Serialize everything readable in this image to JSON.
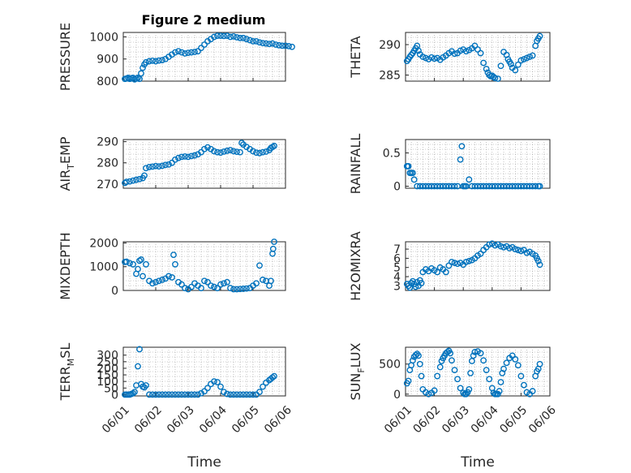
{
  "figure": {
    "title": "Figure 2 medium"
  },
  "colors": {
    "marker": "#0072BD",
    "axis": "#262626",
    "grid": "#9a9a9a"
  },
  "chart_data": [
    {
      "id": "pressure",
      "type": "scatter",
      "ylabel": "PRESSURE",
      "ylim": [
        800,
        1020
      ],
      "yticks": [
        800,
        900,
        1000
      ],
      "xlim": [
        0,
        5
      ],
      "xticks": [
        0,
        1,
        2,
        3,
        4,
        5
      ],
      "xticklabels": [],
      "x": [
        0.05,
        0.1,
        0.15,
        0.2,
        0.25,
        0.3,
        0.35,
        0.4,
        0.45,
        0.5,
        0.55,
        0.6,
        0.65,
        0.7,
        0.8,
        0.9,
        1.0,
        1.1,
        1.2,
        1.3,
        1.4,
        1.5,
        1.6,
        1.7,
        1.8,
        1.9,
        2.0,
        2.1,
        2.2,
        2.3,
        2.4,
        2.5,
        2.6,
        2.7,
        2.8,
        2.9,
        3.0,
        3.1,
        3.2,
        3.3,
        3.4,
        3.5,
        3.6,
        3.7,
        3.8,
        3.9,
        4.0,
        4.1,
        4.2,
        4.3,
        4.4,
        4.5,
        4.6,
        4.7,
        4.8,
        4.9,
        5.0,
        5.1,
        5.2
      ],
      "y": [
        810,
        812,
        815,
        810,
        813,
        815,
        808,
        812,
        815,
        810,
        835,
        860,
        875,
        885,
        890,
        892,
        890,
        893,
        895,
        900,
        910,
        920,
        930,
        935,
        930,
        925,
        928,
        930,
        932,
        935,
        950,
        965,
        980,
        990,
        1000,
        1005,
        1005,
        1004,
        1005,
        1000,
        1002,
        998,
        995,
        995,
        990,
        985,
        980,
        980,
        975,
        972,
        970,
        968,
        970,
        965,
        962,
        960,
        960,
        958,
        955
      ]
    },
    {
      "id": "theta",
      "type": "scatter",
      "ylabel": "THETA",
      "ylim": [
        284,
        292
      ],
      "yticks": [
        285,
        290
      ],
      "xlim": [
        0,
        5
      ],
      "xticks": [
        0,
        1,
        2,
        3,
        4,
        5
      ],
      "xticklabels": [],
      "x": [
        0.05,
        0.1,
        0.15,
        0.2,
        0.25,
        0.3,
        0.35,
        0.4,
        0.45,
        0.5,
        0.6,
        0.7,
        0.8,
        0.9,
        1.0,
        1.1,
        1.2,
        1.3,
        1.4,
        1.5,
        1.6,
        1.7,
        1.8,
        1.9,
        2.0,
        2.1,
        2.2,
        2.3,
        2.4,
        2.5,
        2.6,
        2.7,
        2.8,
        2.85,
        2.9,
        2.95,
        3.0,
        3.05,
        3.1,
        3.2,
        3.3,
        3.4,
        3.5,
        3.55,
        3.6,
        3.65,
        3.7,
        3.8,
        3.9,
        4.0,
        4.1,
        4.2,
        4.3,
        4.4,
        4.5,
        4.55,
        4.6,
        4.65
      ],
      "y": [
        287.3,
        287.6,
        288,
        288.3,
        288.6,
        289,
        289.4,
        289.8,
        289,
        288.4,
        288,
        287.8,
        287.6,
        287.9,
        287.7,
        287.8,
        287.5,
        287.9,
        288.2,
        288.6,
        288.9,
        288.5,
        288.6,
        289,
        289.2,
        288.9,
        289.1,
        289.4,
        289.8,
        289.2,
        288.6,
        287,
        286,
        285.4,
        285,
        284.8,
        284.9,
        284.7,
        284.5,
        284.4,
        286.5,
        288.8,
        288.3,
        287.6,
        287.2,
        286.8,
        286.2,
        285.8,
        286.7,
        287.4,
        287.6,
        287.8,
        288,
        288.2,
        289.8,
        290.6,
        291,
        291.4
      ]
    },
    {
      "id": "air_temp",
      "type": "scatter",
      "ylabel": "AIR_TEMP",
      "ylabel_main": "AIR",
      "ylabel_sub": "T",
      "ylabel_tail": "EMP",
      "ylim": [
        268,
        291
      ],
      "yticks": [
        270,
        280,
        290
      ],
      "xlim": [
        0,
        5
      ],
      "xticks": [
        0,
        1,
        2,
        3,
        4,
        5
      ],
      "xticklabels": [],
      "x": [
        0.05,
        0.1,
        0.2,
        0.3,
        0.4,
        0.5,
        0.6,
        0.65,
        0.7,
        0.8,
        0.9,
        1.0,
        1.1,
        1.2,
        1.3,
        1.4,
        1.5,
        1.6,
        1.7,
        1.8,
        1.9,
        2.0,
        2.1,
        2.2,
        2.3,
        2.4,
        2.5,
        2.6,
        2.7,
        2.8,
        2.9,
        3.0,
        3.1,
        3.2,
        3.3,
        3.4,
        3.5,
        3.6,
        3.65,
        3.7,
        3.8,
        3.9,
        4.0,
        4.1,
        4.2,
        4.3,
        4.4,
        4.5,
        4.55,
        4.6,
        4.65
      ],
      "y": [
        270.5,
        271,
        271.2,
        271.6,
        272,
        272.3,
        272.8,
        274,
        277.5,
        278,
        278.2,
        278.5,
        278.3,
        278.6,
        279,
        279.2,
        280,
        281.5,
        282.3,
        282.8,
        283,
        282.8,
        283.2,
        283.5,
        284,
        285,
        286.5,
        287.3,
        286.5,
        285.5,
        285,
        284.8,
        285.3,
        285.7,
        286,
        285.5,
        285.2,
        285,
        289.4,
        288.6,
        287.5,
        286.5,
        285.5,
        284.8,
        284.6,
        285,
        285.3,
        286,
        287,
        287.5,
        288
      ]
    },
    {
      "id": "rainfall",
      "type": "scatter",
      "ylabel": "RAINFALL",
      "ylim": [
        -0.03,
        0.7
      ],
      "yticks": [
        0,
        0.5
      ],
      "yticklabels": [
        "0",
        "0.5"
      ],
      "xlim": [
        0,
        5
      ],
      "xticks": [
        0,
        1,
        2,
        3,
        4,
        5
      ],
      "xticklabels": [],
      "x": [
        0.05,
        0.08,
        0.1,
        0.15,
        0.2,
        0.25,
        0.3,
        0.4,
        0.5,
        0.6,
        0.7,
        0.8,
        0.9,
        1.0,
        1.1,
        1.2,
        1.3,
        1.4,
        1.5,
        1.6,
        1.7,
        1.8,
        1.9,
        1.95,
        2.0,
        2.05,
        2.1,
        2.2,
        2.3,
        2.4,
        2.5,
        2.6,
        2.7,
        2.8,
        2.9,
        3.0,
        3.1,
        3.2,
        3.3,
        3.4,
        3.5,
        3.6,
        3.7,
        3.8,
        3.9,
        4.0,
        4.1,
        4.2,
        4.3,
        4.4,
        4.5,
        4.6,
        4.65
      ],
      "y": [
        0.3,
        0.3,
        0.3,
        0.2,
        0.2,
        0.2,
        0.1,
        0,
        0,
        0,
        0,
        0,
        0,
        0,
        0,
        0,
        0,
        0,
        0,
        0,
        0,
        0,
        0.4,
        0.6,
        0,
        0,
        0,
        0.1,
        0,
        0,
        0,
        0,
        0,
        0,
        0,
        0,
        0,
        0,
        0,
        0,
        0,
        0,
        0,
        0,
        0,
        0,
        0,
        0,
        0,
        0,
        0,
        0,
        0
      ]
    },
    {
      "id": "mixdepth",
      "type": "scatter",
      "ylabel": "MIXDEPTH",
      "ylim": [
        0,
        2050
      ],
      "yticks": [
        0,
        1000,
        2000
      ],
      "xlim": [
        0,
        5
      ],
      "xticks": [
        0,
        1,
        2,
        3,
        4,
        5
      ],
      "xticklabels": [],
      "x": [
        0.05,
        0.1,
        0.2,
        0.3,
        0.4,
        0.45,
        0.5,
        0.55,
        0.6,
        0.7,
        0.8,
        0.9,
        1.0,
        1.1,
        1.2,
        1.3,
        1.4,
        1.5,
        1.55,
        1.6,
        1.7,
        1.8,
        1.9,
        2.0,
        2.1,
        2.2,
        2.3,
        2.4,
        2.5,
        2.6,
        2.7,
        2.8,
        2.9,
        3.0,
        3.1,
        3.2,
        3.3,
        3.4,
        3.5,
        3.6,
        3.7,
        3.8,
        3.9,
        4.0,
        4.1,
        4.2,
        4.3,
        4.4,
        4.5,
        4.55,
        4.6,
        4.62,
        4.65
      ],
      "y": [
        1200,
        1210,
        1150,
        1100,
        700,
        900,
        1250,
        1300,
        600,
        1100,
        400,
        300,
        350,
        400,
        450,
        500,
        600,
        550,
        1500,
        1100,
        350,
        250,
        100,
        50,
        150,
        300,
        200,
        100,
        400,
        350,
        200,
        150,
        100,
        250,
        300,
        350,
        100,
        50,
        50,
        60,
        70,
        80,
        100,
        200,
        300,
        1050,
        450,
        400,
        200,
        400,
        1550,
        1750,
        2050
      ]
    },
    {
      "id": "h2omixra",
      "type": "scatter",
      "ylabel": "H2OMIXRA",
      "ylim": [
        2.5,
        7.8
      ],
      "yticks": [
        3,
        4,
        5,
        6,
        7
      ],
      "xlim": [
        0,
        5
      ],
      "xticks": [
        0,
        1,
        2,
        3,
        4,
        5
      ],
      "xticklabels": [],
      "x": [
        0.05,
        0.1,
        0.15,
        0.2,
        0.25,
        0.3,
        0.35,
        0.4,
        0.45,
        0.5,
        0.55,
        0.6,
        0.7,
        0.8,
        0.9,
        1.0,
        1.1,
        1.2,
        1.3,
        1.4,
        1.5,
        1.6,
        1.7,
        1.8,
        1.9,
        2.0,
        2.1,
        2.2,
        2.3,
        2.4,
        2.5,
        2.6,
        2.7,
        2.8,
        2.9,
        3.0,
        3.1,
        3.2,
        3.3,
        3.4,
        3.5,
        3.6,
        3.7,
        3.8,
        3.9,
        4.0,
        4.1,
        4.2,
        4.3,
        4.4,
        4.5,
        4.55,
        4.6,
        4.65
      ],
      "y": [
        3.2,
        3.0,
        2.8,
        3.3,
        3.5,
        3.2,
        2.9,
        3.4,
        3.0,
        3.6,
        3.3,
        4.5,
        4.8,
        4.6,
        4.9,
        4.7,
        4.5,
        5.0,
        4.8,
        4.5,
        5.2,
        5.6,
        5.5,
        5.4,
        5.5,
        5.3,
        5.6,
        5.7,
        5.8,
        6.0,
        6.3,
        6.5,
        6.9,
        7.2,
        7.5,
        7.6,
        7.4,
        7.5,
        7.3,
        7.2,
        7.3,
        7.1,
        7.2,
        7.0,
        6.9,
        6.8,
        6.9,
        6.6,
        6.7,
        6.5,
        6.3,
        6.0,
        5.7,
        5.3
      ]
    },
    {
      "id": "terr_msl",
      "type": "scatter",
      "ylabel": "TERR_MSL",
      "ylabel_main": "TERR",
      "ylabel_sub": "M",
      "ylabel_tail": "SL",
      "ylim": [
        -10,
        360
      ],
      "yticks": [
        0,
        50,
        100,
        150,
        200,
        250,
        300
      ],
      "xlim": [
        0,
        5
      ],
      "xticks": [
        0,
        1,
        2,
        3,
        4,
        5
      ],
      "xticklabels": [
        "06/01",
        "06/02",
        "06/03",
        "06/04",
        "06/05",
        "06/06"
      ],
      "xlabel": "Time",
      "x": [
        0.05,
        0.1,
        0.15,
        0.2,
        0.25,
        0.3,
        0.35,
        0.4,
        0.45,
        0.5,
        0.55,
        0.6,
        0.65,
        0.7,
        0.8,
        0.9,
        1.0,
        1.1,
        1.2,
        1.3,
        1.4,
        1.5,
        1.6,
        1.7,
        1.8,
        1.9,
        2.0,
        2.1,
        2.2,
        2.3,
        2.4,
        2.5,
        2.6,
        2.7,
        2.8,
        2.9,
        3.0,
        3.1,
        3.2,
        3.3,
        3.4,
        3.5,
        3.6,
        3.7,
        3.8,
        3.9,
        4.0,
        4.1,
        4.2,
        4.3,
        4.4,
        4.5,
        4.55,
        4.6,
        4.65
      ],
      "y": [
        0,
        0,
        0,
        0,
        5,
        10,
        20,
        70,
        215,
        345,
        80,
        60,
        55,
        70,
        0,
        0,
        0,
        0,
        0,
        0,
        0,
        0,
        0,
        0,
        0,
        0,
        0,
        0,
        0,
        0,
        10,
        25,
        50,
        80,
        100,
        95,
        60,
        20,
        5,
        0,
        0,
        0,
        0,
        0,
        0,
        0,
        0,
        0,
        20,
        60,
        90,
        110,
        120,
        130,
        140
      ]
    },
    {
      "id": "sun_flux",
      "type": "scatter",
      "ylabel": "SUN_FLUX",
      "ylabel_main": "SUN",
      "ylabel_sub": "F",
      "ylabel_tail": "LUX",
      "ylim": [
        -30,
        780
      ],
      "yticks": [
        0,
        500
      ],
      "xlim": [
        0,
        5
      ],
      "xticks": [
        0,
        1,
        2,
        3,
        4,
        5
      ],
      "xticklabels": [
        "06/01",
        "06/02",
        "06/03",
        "06/04",
        "06/05",
        "06/06"
      ],
      "xlabel": "Time",
      "x": [
        0.05,
        0.1,
        0.15,
        0.2,
        0.25,
        0.3,
        0.35,
        0.4,
        0.45,
        0.5,
        0.55,
        0.6,
        0.7,
        0.8,
        0.9,
        1.0,
        1.1,
        1.2,
        1.25,
        1.3,
        1.35,
        1.4,
        1.45,
        1.5,
        1.55,
        1.6,
        1.7,
        1.8,
        1.9,
        2.0,
        2.05,
        2.1,
        2.15,
        2.2,
        2.25,
        2.3,
        2.35,
        2.4,
        2.5,
        2.6,
        2.7,
        2.8,
        2.9,
        3.0,
        3.05,
        3.1,
        3.15,
        3.2,
        3.25,
        3.3,
        3.35,
        3.4,
        3.5,
        3.6,
        3.7,
        3.8,
        3.9,
        4.0,
        4.1,
        4.2,
        4.3,
        4.4,
        4.5,
        4.55,
        4.6,
        4.65
      ],
      "y": [
        180,
        220,
        400,
        480,
        560,
        620,
        650,
        670,
        640,
        500,
        300,
        80,
        30,
        0,
        20,
        60,
        300,
        450,
        550,
        600,
        640,
        680,
        700,
        720,
        680,
        560,
        400,
        250,
        100,
        20,
        0,
        0,
        30,
        80,
        350,
        550,
        640,
        700,
        710,
        680,
        560,
        400,
        250,
        100,
        20,
        0,
        0,
        0,
        50,
        200,
        350,
        420,
        520,
        600,
        640,
        580,
        480,
        300,
        150,
        30,
        0,
        50,
        300,
        380,
        420,
        500
      ]
    }
  ]
}
